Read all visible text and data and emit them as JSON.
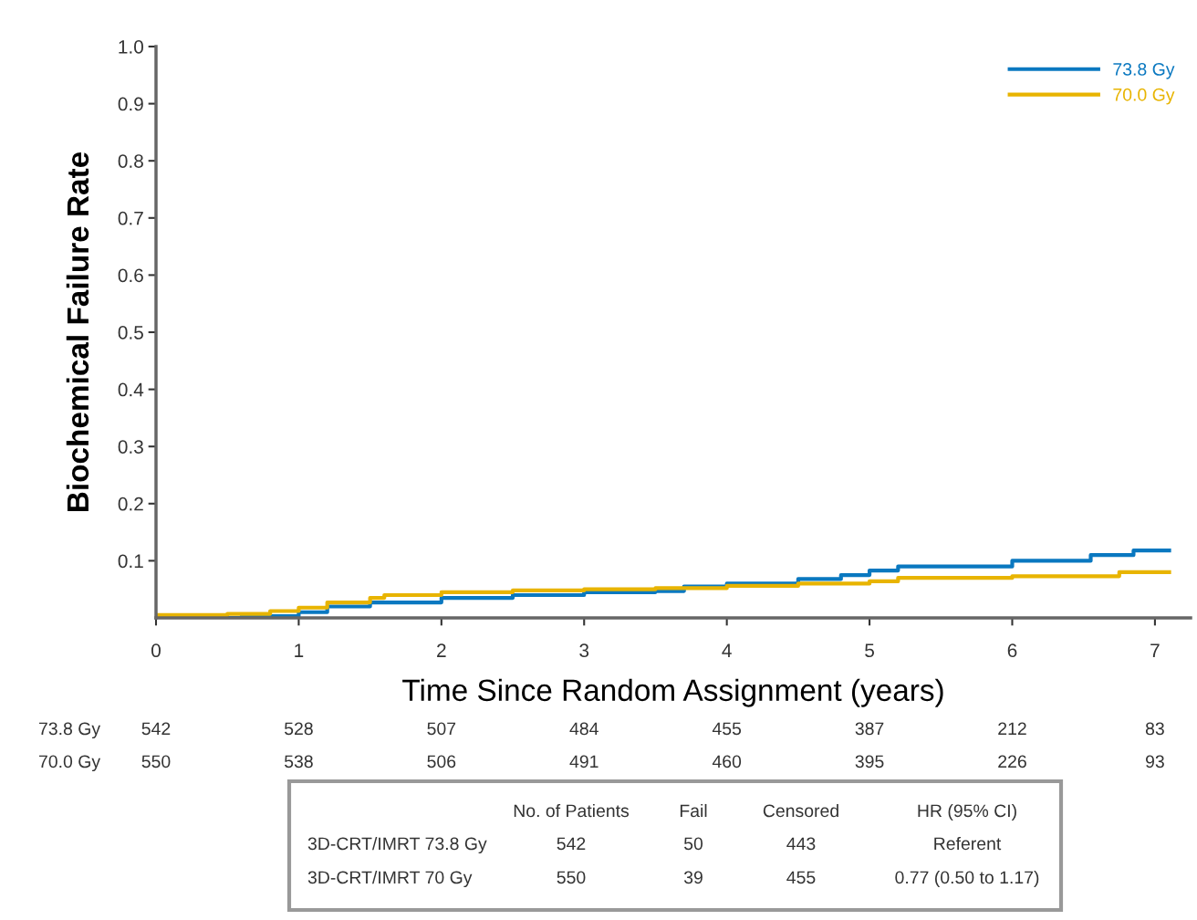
{
  "chart_data": {
    "type": "step",
    "xlabel": "Time Since Random Assignment (years)",
    "ylabel": "Biochemical Failure Rate",
    "xlim": [
      0,
      7.25
    ],
    "xticks": [
      0,
      1,
      2,
      3,
      4,
      5,
      6,
      7
    ],
    "ylim": [
      0,
      1.0
    ],
    "yticks": [
      0.1,
      0.2,
      0.3,
      0.4,
      0.5,
      0.6,
      0.7,
      0.8,
      0.9,
      {
        "value": 1.0,
        "label": "1.0"
      }
    ],
    "grid": false,
    "legend": "top right",
    "line_style": "solid",
    "marker": "none",
    "series": [
      {
        "name": "73.8 Gy",
        "color": "#0a78c0",
        "x": [
          0,
          0.6,
          1.0,
          1.2,
          1.5,
          2.0,
          2.5,
          3.0,
          3.5,
          3.7,
          4.0,
          4.5,
          4.8,
          5.0,
          5.2,
          6.0,
          6.55,
          6.85,
          7.1
        ],
        "values": [
          0,
          0.003,
          0.01,
          0.02,
          0.027,
          0.035,
          0.04,
          0.045,
          0.047,
          0.055,
          0.06,
          0.068,
          0.075,
          0.083,
          0.09,
          0.1,
          0.11,
          0.118,
          0.118
        ]
      },
      {
        "name": "70.0 Gy",
        "color": "#e8b400",
        "x": [
          0,
          0.5,
          0.8,
          1.0,
          1.2,
          1.5,
          1.6,
          2.0,
          2.5,
          3.0,
          3.5,
          4.0,
          4.5,
          5.0,
          5.2,
          6.0,
          6.75,
          7.1
        ],
        "values": [
          0.005,
          0.007,
          0.012,
          0.018,
          0.027,
          0.035,
          0.04,
          0.045,
          0.048,
          0.05,
          0.052,
          0.056,
          0.06,
          0.064,
          0.07,
          0.073,
          0.08,
          0.08
        ]
      }
    ],
    "annotations": [
      "73.8 Gy",
      "542",
      "528",
      "507",
      "484",
      "455",
      "387",
      "212",
      "83",
      "70.0 Gy",
      "550",
      "538",
      "506",
      "491",
      "460",
      "395",
      "226",
      "93",
      "No. of Patients",
      "Fail",
      "Censored",
      "HR (95% CI)",
      "3D-CRT/IMRT 73.8 Gy",
      "542",
      "50",
      "443",
      "Referent",
      "3D-CRT/IMRT 70 Gy",
      "550",
      "39",
      "455",
      "0.77 (0.50 to 1.17)"
    ]
  }
}
